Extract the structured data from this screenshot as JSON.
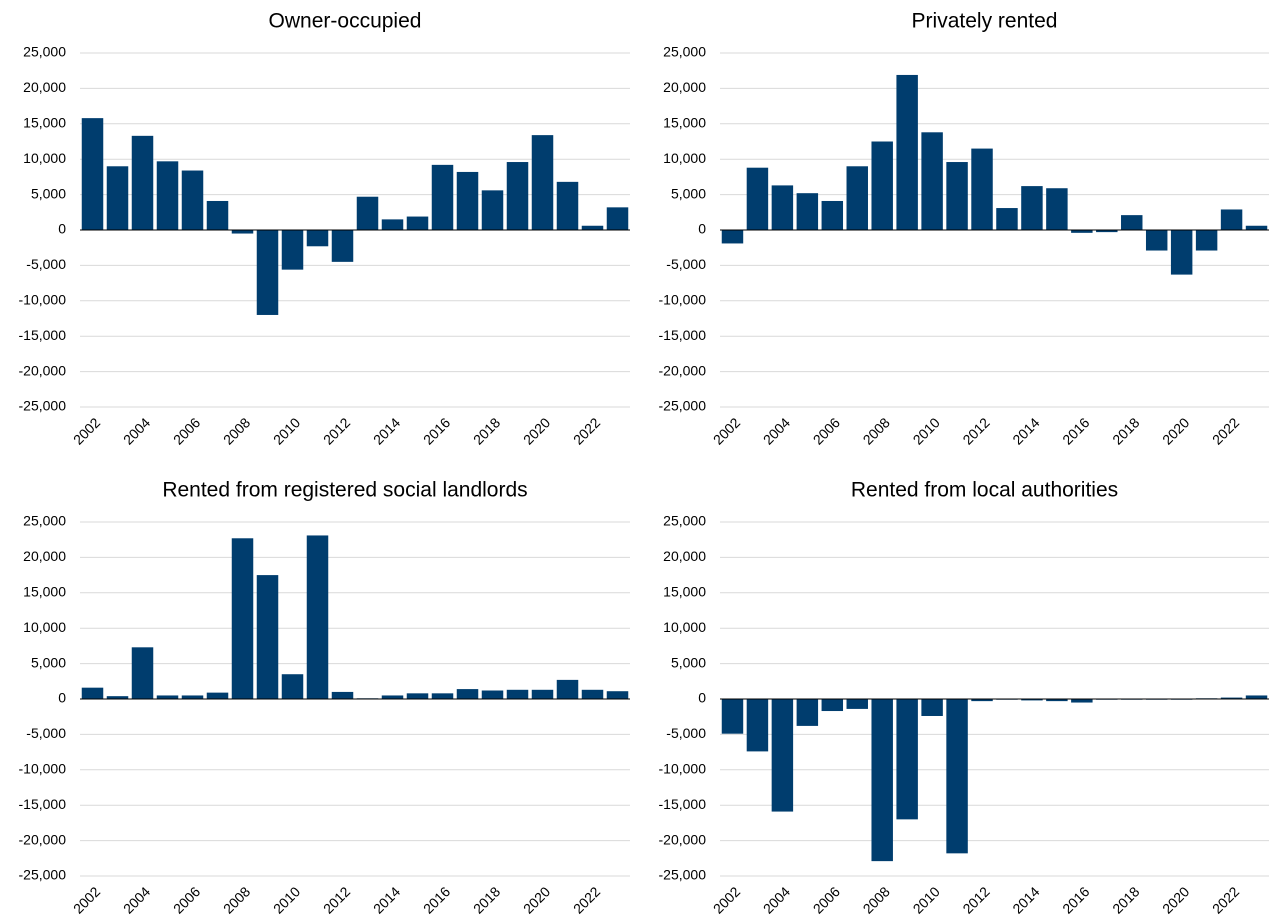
{
  "chart_data": [
    {
      "type": "bar",
      "title": "Owner-occupied",
      "color": "#003d6e",
      "grid": true,
      "categories": [
        "2002",
        null,
        "2004",
        null,
        "2006",
        null,
        "2008",
        null,
        "2010",
        null,
        "2012",
        null,
        "2014",
        null,
        "2016",
        null,
        "2018",
        null,
        "2020",
        null,
        "2022",
        null
      ],
      "values": [
        15800,
        9000,
        13300,
        9700,
        8400,
        4100,
        -500,
        -12000,
        -5600,
        -2300,
        -4500,
        4700,
        1500,
        1900,
        9200,
        8200,
        5600,
        9600,
        13400,
        6800,
        600,
        3200
      ],
      "ylim": [
        -25000,
        25000
      ],
      "yticks": [
        {
          "value": -25000,
          "label": "-25,000"
        },
        {
          "value": -20000,
          "label": "-20,000"
        },
        {
          "value": -15000,
          "label": "-15,000"
        },
        {
          "value": -10000,
          "label": "-10,000"
        },
        {
          "value": -5000,
          "label": "-5,000"
        },
        0,
        {
          "value": 5000,
          "label": "5,000"
        },
        {
          "value": 10000,
          "label": "10,000"
        },
        {
          "value": 15000,
          "label": "15,000"
        },
        {
          "value": 20000,
          "label": "20,000"
        },
        {
          "value": 25000,
          "label": "25,000"
        }
      ]
    },
    {
      "type": "bar",
      "title": "Privately rented",
      "color": "#003d6e",
      "grid": true,
      "categories": [
        "2002",
        null,
        "2004",
        null,
        "2006",
        null,
        "2008",
        null,
        "2010",
        null,
        "2012",
        null,
        "2014",
        null,
        "2016",
        null,
        "2018",
        null,
        "2020",
        null,
        "2022",
        null
      ],
      "values": [
        -1900,
        8800,
        6300,
        5200,
        4100,
        9000,
        12500,
        21900,
        13800,
        9600,
        11500,
        3100,
        6200,
        5900,
        -400,
        -300,
        2100,
        -2900,
        -6300,
        -2900,
        2900,
        600
      ],
      "ylim": [
        -25000,
        25000
      ],
      "yticks": [
        {
          "value": -25000,
          "label": "-25,000"
        },
        {
          "value": -20000,
          "label": "-20,000"
        },
        {
          "value": -15000,
          "label": "-15,000"
        },
        {
          "value": -10000,
          "label": "-10,000"
        },
        {
          "value": -5000,
          "label": "-5,000"
        },
        0,
        {
          "value": 5000,
          "label": "5,000"
        },
        {
          "value": 10000,
          "label": "10,000"
        },
        {
          "value": 15000,
          "label": "15,000"
        },
        {
          "value": 20000,
          "label": "20,000"
        },
        {
          "value": 25000,
          "label": "25,000"
        }
      ]
    },
    {
      "type": "bar",
      "title": "Rented from registered social landlords",
      "color": "#003d6e",
      "grid": true,
      "categories": [
        "2002",
        null,
        "2004",
        null,
        "2006",
        null,
        "2008",
        null,
        "2010",
        null,
        "2012",
        null,
        "2014",
        null,
        "2016",
        null,
        "2018",
        null,
        "2020",
        null,
        "2022",
        null
      ],
      "values": [
        1600,
        400,
        7300,
        500,
        500,
        900,
        22700,
        17500,
        3500,
        23100,
        1000,
        100,
        500,
        800,
        800,
        1400,
        1200,
        1300,
        1300,
        2700,
        1300,
        1100
      ],
      "ylim": [
        -25000,
        25000
      ],
      "yticks": [
        {
          "value": -25000,
          "label": "-25,000"
        },
        {
          "value": -20000,
          "label": "-20,000"
        },
        {
          "value": -15000,
          "label": "-15,000"
        },
        {
          "value": -10000,
          "label": "-10,000"
        },
        {
          "value": -5000,
          "label": "-5,000"
        },
        0,
        {
          "value": 5000,
          "label": "5,000"
        },
        {
          "value": 10000,
          "label": "10,000"
        },
        {
          "value": 15000,
          "label": "15,000"
        },
        {
          "value": 20000,
          "label": "20,000"
        },
        {
          "value": 25000,
          "label": "25,000"
        }
      ]
    },
    {
      "type": "bar",
      "title": "Rented from local authorities",
      "color": "#003d6e",
      "grid": true,
      "categories": [
        "2002",
        null,
        "2004",
        null,
        "2006",
        null,
        "2008",
        null,
        "2010",
        null,
        "2012",
        null,
        "2014",
        null,
        "2016",
        null,
        "2018",
        null,
        "2020",
        null,
        "2022",
        null
      ],
      "values": [
        -4900,
        -7400,
        -15900,
        -3800,
        -1700,
        -1400,
        -22900,
        -17000,
        -2400,
        -21800,
        -300,
        -100,
        -200,
        -300,
        -500,
        -100,
        -100,
        -100,
        -100,
        100,
        200,
        500
      ],
      "ylim": [
        -25000,
        25000
      ],
      "yticks": [
        {
          "value": -25000,
          "label": "-25,000"
        },
        {
          "value": -20000,
          "label": "-20,000"
        },
        {
          "value": -15000,
          "label": "-15,000"
        },
        {
          "value": -10000,
          "label": "-10,000"
        },
        {
          "value": -5000,
          "label": "-5,000"
        },
        0,
        {
          "value": 5000,
          "label": "5,000"
        },
        {
          "value": 10000,
          "label": "10,000"
        },
        {
          "value": 15000,
          "label": "15,000"
        },
        {
          "value": 20000,
          "label": "20,000"
        },
        {
          "value": 25000,
          "label": "25,000"
        }
      ]
    }
  ]
}
